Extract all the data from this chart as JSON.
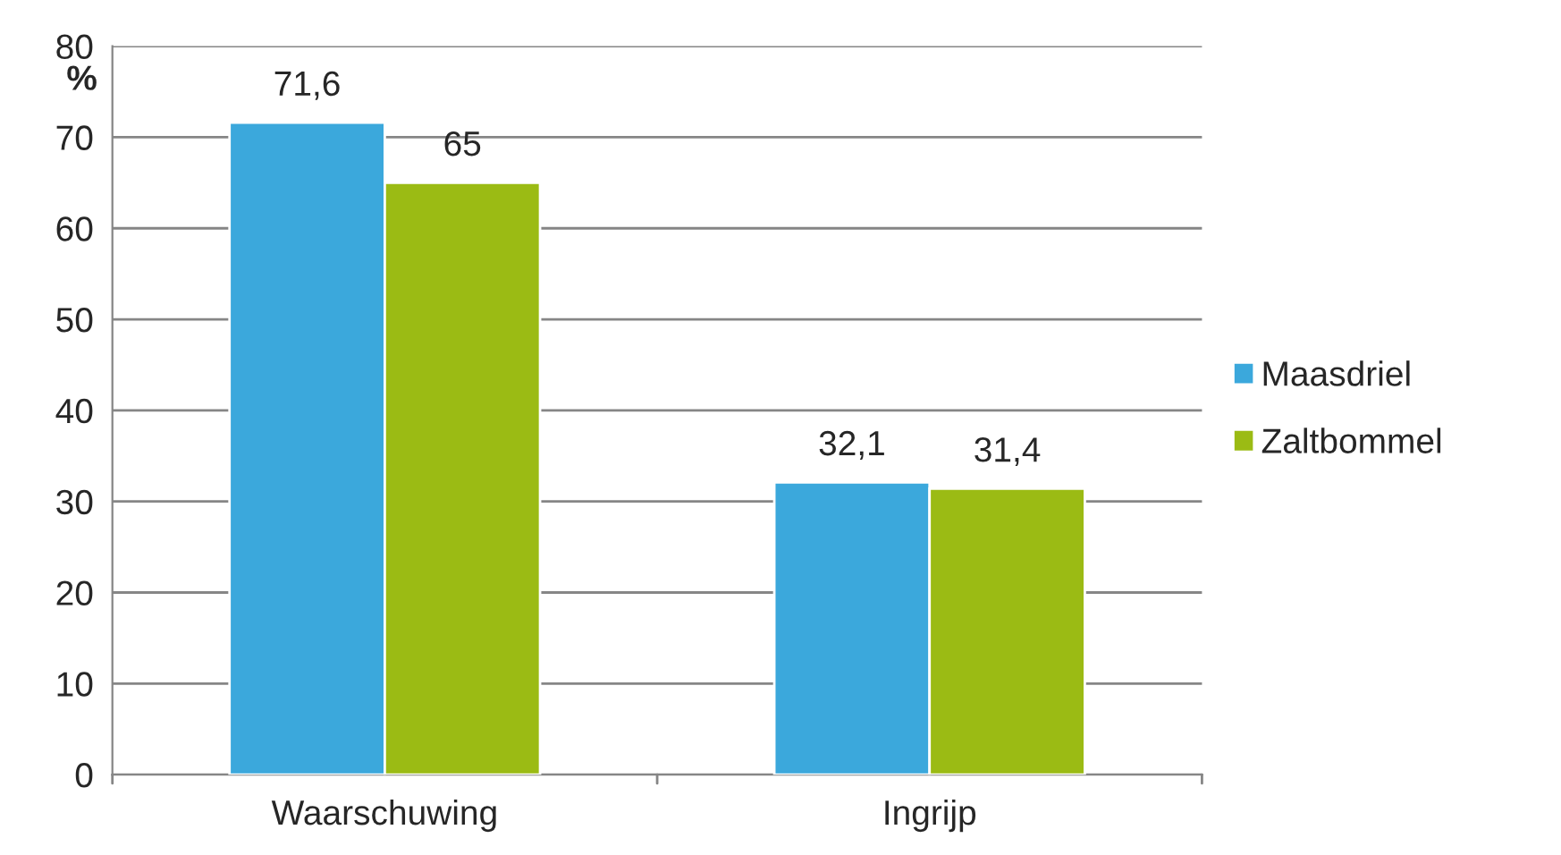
{
  "chart_data": {
    "type": "bar",
    "ylabel": "%",
    "categories": [
      "Waarschuwing",
      "Ingrijp"
    ],
    "series": [
      {
        "name": "Maasdriel",
        "color": "#3ba8dc",
        "values": [
          71.6,
          32.1
        ],
        "value_labels": [
          "71,6",
          "32,1"
        ]
      },
      {
        "name": "Zaltbommel",
        "color": "#9bbb14",
        "values": [
          65,
          31.4
        ],
        "value_labels": [
          "65",
          "31,4"
        ]
      }
    ],
    "ylim": [
      0,
      80
    ],
    "yticks": [
      0,
      10,
      20,
      30,
      40,
      50,
      60,
      70,
      80
    ],
    "grid": "y",
    "legend": "right"
  }
}
